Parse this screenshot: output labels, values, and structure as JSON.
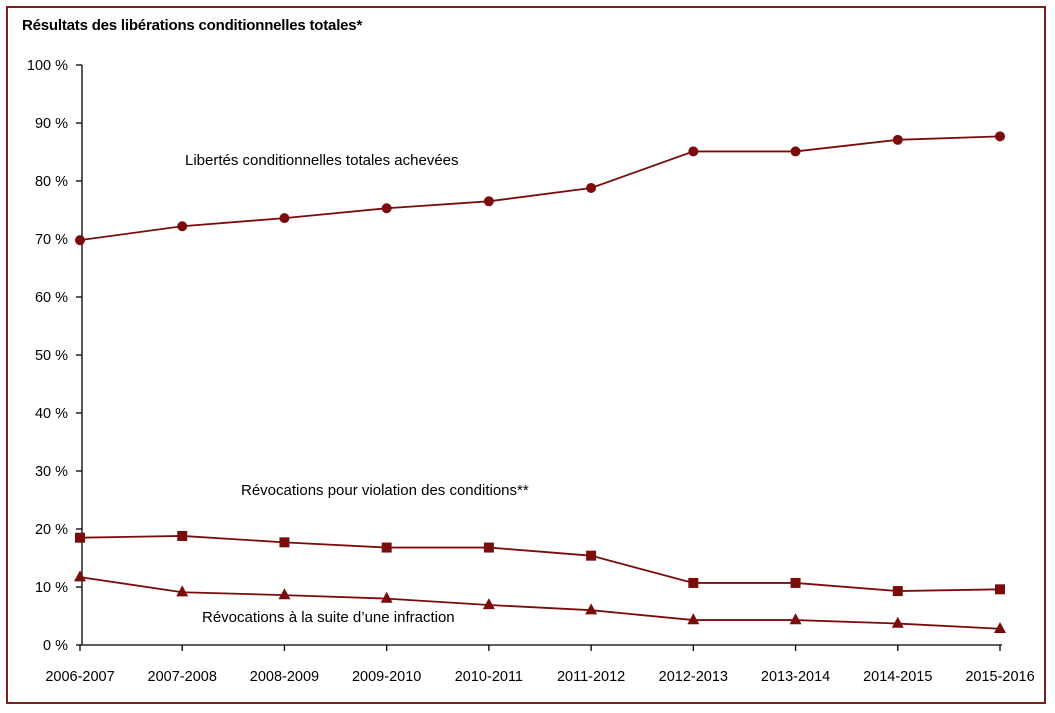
{
  "chart_data": {
    "type": "line",
    "title": "Résultats des libérations conditionnelles totales*",
    "xlabel": "",
    "ylabel": "",
    "ylim": [
      0,
      100
    ],
    "y_ticks": [
      0,
      10,
      20,
      30,
      40,
      50,
      60,
      70,
      80,
      90,
      100
    ],
    "y_tick_labels": [
      "0 %",
      "10 %",
      "20 %",
      "30 %",
      "40 %",
      "50 %",
      "60 %",
      "70 %",
      "80 %",
      "90 %",
      "100 %"
    ],
    "grid": false,
    "legend": "none",
    "categories": [
      "2006-2007",
      "2007-2008",
      "2008-2009",
      "2009-2010",
      "2010-2011",
      "2011-2012",
      "2012-2013",
      "2013-2014",
      "2014-2015",
      "2015-2016"
    ],
    "series": [
      {
        "name": "Libertés conditionnelles totales achevées",
        "marker": "circle",
        "values": [
          69.8,
          72.2,
          73.6,
          75.3,
          76.5,
          78.8,
          85.1,
          85.1,
          87.1,
          87.7
        ]
      },
      {
        "name": "Révocations pour violation des conditions**",
        "marker": "square",
        "values": [
          18.5,
          18.8,
          17.7,
          16.8,
          16.8,
          15.4,
          10.7,
          10.7,
          9.3,
          9.6
        ]
      },
      {
        "name": "Révocations à la suite d’une infraction",
        "marker": "triangle",
        "values": [
          11.7,
          9.1,
          8.6,
          8.0,
          6.9,
          6.0,
          4.3,
          4.3,
          3.7,
          2.8
        ]
      }
    ],
    "color": "#7b0c0c",
    "axis_color": "#000000",
    "frame_color": "#7a1f1f"
  }
}
